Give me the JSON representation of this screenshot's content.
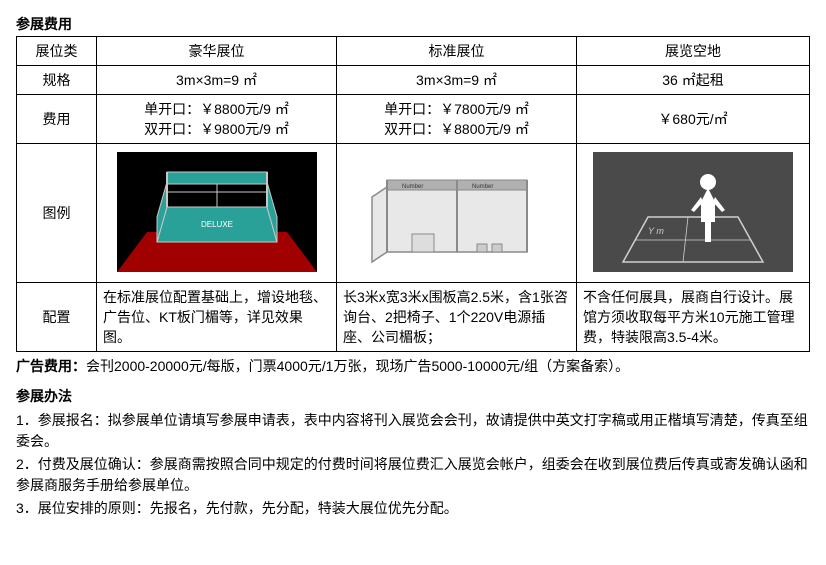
{
  "section_fee_title": "参展费用",
  "table": {
    "col0": "展位类",
    "col1": "豪华展位",
    "col2": "标准展位",
    "col3": "展览空地",
    "row_spec_label": "规格",
    "spec_deluxe": "3m×3m=9 ㎡",
    "spec_standard": "3m×3m=9 ㎡",
    "spec_raw": "36 ㎡起租",
    "row_fee_label": "费用",
    "fee_deluxe_l1": "单开口：￥8800元/9 ㎡",
    "fee_deluxe_l2": "双开口：￥9800元/9 ㎡",
    "fee_standard_l1": "单开口：￥7800元/9 ㎡",
    "fee_standard_l2": "双开口：￥8800元/9 ㎡",
    "fee_raw": "￥680元/㎡",
    "row_illus_label": "图例",
    "row_config_label": "配置",
    "config_deluxe": "在标准展位配置基础上，增设地毯、广告位、KT板门楣等，详见效果图。",
    "config_standard": "长3米x宽3米x围板高2.5米，含1张咨询台、2把椅子、1个220V电源插座、公司楣板；",
    "config_raw": "不含任何展具，展商自行设计。展馆方须收取每平方米10元施工管理费，特装限高3.5-4米。"
  },
  "ad_label": "广告费用：",
  "ad_text": "会刊2000-20000元/每版，门票4000元/1万张，现场广告5000-10000元/组（方案备索）。",
  "section_method_title": "参展办法",
  "methods": {
    "m1": "1．参展报名：拟参展单位请填写参展申请表，表中内容将刊入展览会会刊，故请提供中英文打字稿或用正楷填写清楚，传真至组委会。",
    "m2": "2．付费及展位确认：参展商需按照合同中规定的付费时间将展位费汇入展览会帐户，组委会在收到展位费后传真或寄发确认函和参展商服务手册给参展单位。",
    "m3": "3．展位安排的原则：先报名，先付款，先分配，特装大展位优先分配。"
  },
  "illus": {
    "deluxe": {
      "bg": "#000000",
      "floor": "#a00000",
      "frame": "#c8c8c8",
      "panel": "#2aa198",
      "panel_text": "#ffffff"
    },
    "standard": {
      "bg": "#ffffff",
      "frame": "#8a8a8a",
      "panel": "#e8e8e8",
      "header": "#b0b0b0"
    },
    "raw": {
      "bg": "#4a4a4a",
      "line": "#d0d0d0",
      "person": "#ffffff",
      "label": "Y m"
    }
  }
}
